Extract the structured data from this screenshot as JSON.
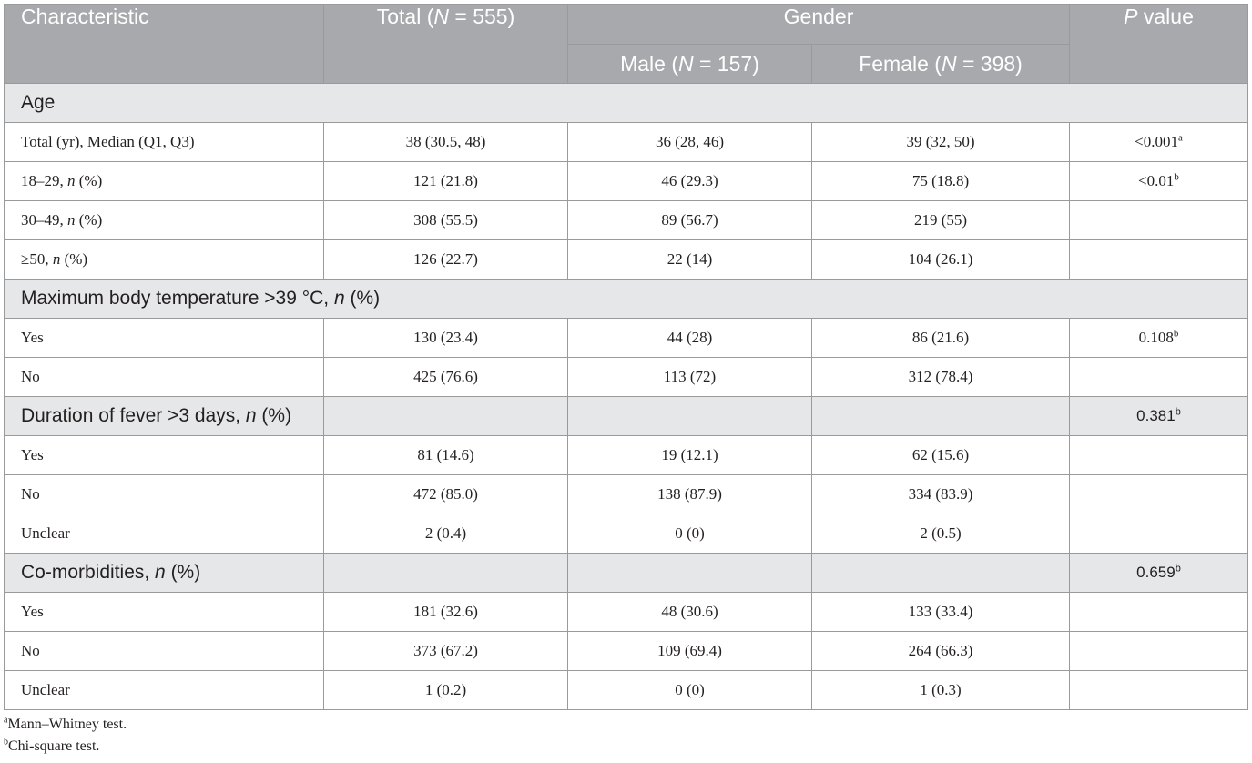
{
  "header": {
    "characteristic": "Characteristic",
    "total_pre": "Total (",
    "total_var": "N",
    "total_post": " = 555)",
    "gender": "Gender",
    "pvalue_var": "P",
    "pvalue_post": " value",
    "male_pre": "Male (",
    "male_var": "N",
    "male_post": " = 157)",
    "female_pre": "Female (",
    "female_var": "N",
    "female_post": " = 398)"
  },
  "groups": [
    {
      "label": "Age",
      "label_var": "",
      "label_post": "",
      "pvalue": "",
      "pvalue_sup": "",
      "rows": [
        {
          "label": "Total (yr), Median (Q1, Q3)",
          "label_var": "",
          "label_post": "",
          "total": "38 (30.5, 48)",
          "male": "36 (28, 46)",
          "female": "39 (32, 50)",
          "pvalue": "<0.001",
          "pvalue_sup": "a"
        },
        {
          "label": "18–29, ",
          "label_var": "n",
          "label_post": " (%)",
          "total": "121 (21.8)",
          "male": "46 (29.3)",
          "female": "75 (18.8)",
          "pvalue": "<0.01",
          "pvalue_sup": "b"
        },
        {
          "label": "30–49, ",
          "label_var": "n",
          "label_post": " (%)",
          "total": "308 (55.5)",
          "male": "89 (56.7)",
          "female": "219 (55)",
          "pvalue": "",
          "pvalue_sup": ""
        },
        {
          "label": "≥50, ",
          "label_var": "n",
          "label_post": " (%)",
          "total": "126 (22.7)",
          "male": "22 (14)",
          "female": "104 (26.1)",
          "pvalue": "",
          "pvalue_sup": ""
        }
      ]
    },
    {
      "label": "Maximum body temperature >39 °C, ",
      "label_var": "n",
      "label_post": " (%)",
      "pvalue": "",
      "pvalue_sup": "",
      "rows": [
        {
          "label": "Yes",
          "label_var": "",
          "label_post": "",
          "total": "130 (23.4)",
          "male": "44 (28)",
          "female": "86 (21.6)",
          "pvalue": "0.108",
          "pvalue_sup": "b"
        },
        {
          "label": "No",
          "label_var": "",
          "label_post": "",
          "total": "425 (76.6)",
          "male": "113 (72)",
          "female": "312 (78.4)",
          "pvalue": "",
          "pvalue_sup": ""
        }
      ]
    },
    {
      "label": "Duration of fever >3 days, ",
      "label_var": "n",
      "label_post": " (%)",
      "pvalue": "0.381",
      "pvalue_sup": "b",
      "rows": [
        {
          "label": "Yes",
          "label_var": "",
          "label_post": "",
          "total": "81 (14.6)",
          "male": "19 (12.1)",
          "female": "62 (15.6)",
          "pvalue": "",
          "pvalue_sup": ""
        },
        {
          "label": "No",
          "label_var": "",
          "label_post": "",
          "total": "472 (85.0)",
          "male": "138 (87.9)",
          "female": "334 (83.9)",
          "pvalue": "",
          "pvalue_sup": ""
        },
        {
          "label": "Unclear",
          "label_var": "",
          "label_post": "",
          "total": "2 (0.4)",
          "male": "0 (0)",
          "female": "2 (0.5)",
          "pvalue": "",
          "pvalue_sup": ""
        }
      ]
    },
    {
      "label": "Co-morbidities, ",
      "label_var": "n",
      "label_post": " (%)",
      "pvalue": "0.659",
      "pvalue_sup": "b",
      "rows": [
        {
          "label": "Yes",
          "label_var": "",
          "label_post": "",
          "total": "181 (32.6)",
          "male": "48 (30.6)",
          "female": "133 (33.4)",
          "pvalue": "",
          "pvalue_sup": ""
        },
        {
          "label": "No",
          "label_var": "",
          "label_post": "",
          "total": "373 (67.2)",
          "male": "109 (69.4)",
          "female": "264 (66.3)",
          "pvalue": "",
          "pvalue_sup": ""
        },
        {
          "label": "Unclear",
          "label_var": "",
          "label_post": "",
          "total": "1 (0.2)",
          "male": "0 (0)",
          "female": "1 (0.3)",
          "pvalue": "",
          "pvalue_sup": ""
        }
      ]
    }
  ],
  "footnotes": [
    {
      "mark": "a",
      "text": "Mann–Whitney test."
    },
    {
      "mark": "b",
      "text": "Chi-square test."
    }
  ]
}
